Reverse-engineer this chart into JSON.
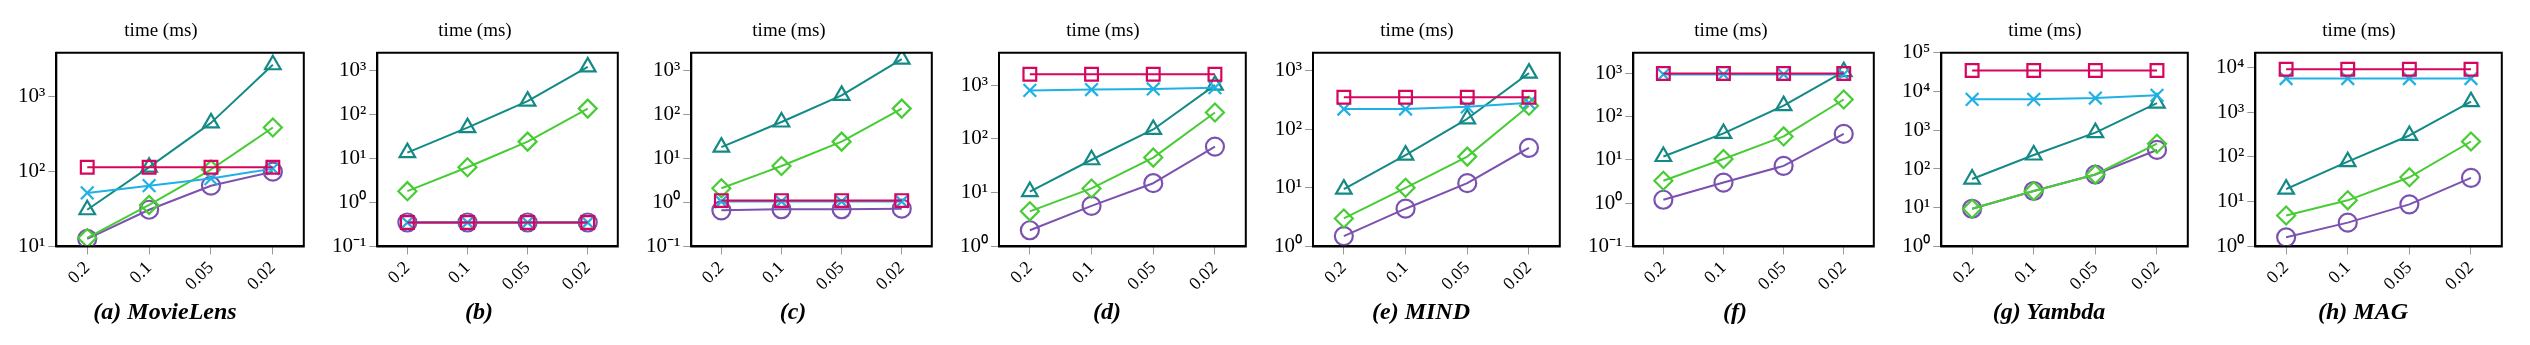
{
  "chart_data": [
    {
      "type": "line",
      "title": "(a) MovieLens",
      "ylabel": "time (ms)",
      "categories": [
        "0.2",
        "0.1",
        "0.05",
        "0.02"
      ],
      "log": "y",
      "ylim": [
        10,
        3900
      ],
      "yticks": [
        {
          "value": 10,
          "label": "10¹"
        },
        {
          "value": 100,
          "label": "10²"
        },
        {
          "value": 1000,
          "label": "10³"
        }
      ],
      "series": [
        {
          "color": "#d6065e",
          "marker": "square",
          "values": [
            115,
            115,
            115,
            115
          ]
        },
        {
          "color": "#1fb1e6",
          "marker": "cross",
          "values": [
            52,
            65,
            81,
            110
          ]
        },
        {
          "color": "#148a86",
          "marker": "triangle",
          "values": [
            31,
            115,
            450,
            2700
          ]
        },
        {
          "color": "#48cc35",
          "marker": "diamond",
          "values": [
            13,
            36,
            107,
            390
          ]
        },
        {
          "color": "#7b52b0",
          "marker": "circle",
          "values": [
            12.6,
            31,
            65,
            100
          ]
        }
      ]
    },
    {
      "type": "line",
      "title": "(b)",
      "ylabel": "time (ms)",
      "categories": [
        "0.2",
        "0.1",
        "0.05",
        "0.02"
      ],
      "log": "y",
      "ylim": [
        0.1,
        2500
      ],
      "yticks": [
        {
          "value": 0.1,
          "label": "10⁻¹"
        },
        {
          "value": 1,
          "label": "10⁰"
        },
        {
          "value": 10,
          "label": "10¹"
        },
        {
          "value": 100,
          "label": "10²"
        },
        {
          "value": 1000,
          "label": "10³"
        }
      ],
      "series": [
        {
          "color": "#d6065e",
          "marker": "square",
          "values": [
            0.35,
            0.35,
            0.35,
            0.35
          ]
        },
        {
          "color": "#1fb1e6",
          "marker": "cross",
          "values": [
            0.35,
            0.35,
            0.35,
            0.35
          ]
        },
        {
          "color": "#148a86",
          "marker": "triangle",
          "values": [
            13.5,
            50,
            200,
            1200
          ]
        },
        {
          "color": "#48cc35",
          "marker": "diamond",
          "values": [
            1.8,
            6.3,
            24,
            135
          ]
        },
        {
          "color": "#7b52b0",
          "marker": "circle",
          "values": [
            0.35,
            0.35,
            0.35,
            0.35
          ]
        }
      ]
    },
    {
      "type": "line",
      "title": "(c)",
      "ylabel": "time (ms)",
      "categories": [
        "0.2",
        "0.1",
        "0.05",
        "0.02"
      ],
      "log": "y",
      "ylim": [
        0.1,
        2500
      ],
      "yticks": [
        {
          "value": 0.1,
          "label": "10⁻¹"
        },
        {
          "value": 1,
          "label": "10⁰"
        },
        {
          "value": 10,
          "label": "10¹"
        },
        {
          "value": 100,
          "label": "10²"
        },
        {
          "value": 1000,
          "label": "10³"
        }
      ],
      "series": [
        {
          "color": "#d6065e",
          "marker": "square",
          "values": [
            1.1,
            1.1,
            1.1,
            1.1
          ]
        },
        {
          "color": "#1fb1e6",
          "marker": "cross",
          "values": [
            1.05,
            1.05,
            1.05,
            1.05
          ]
        },
        {
          "color": "#148a86",
          "marker": "triangle",
          "values": [
            18,
            67,
            270,
            1800
          ]
        },
        {
          "color": "#48cc35",
          "marker": "diamond",
          "values": [
            2.1,
            6.7,
            24,
            135
          ]
        },
        {
          "color": "#7b52b0",
          "marker": "circle",
          "values": [
            0.66,
            0.7,
            0.7,
            0.72
          ]
        }
      ]
    },
    {
      "type": "line",
      "title": "(d)",
      "ylabel": "time (ms)",
      "categories": [
        "0.2",
        "0.1",
        "0.05",
        "0.02"
      ],
      "log": "y",
      "ylim": [
        1,
        4000
      ],
      "yticks": [
        {
          "value": 1,
          "label": "10⁰"
        },
        {
          "value": 10,
          "label": "10¹"
        },
        {
          "value": 100,
          "label": "10²"
        },
        {
          "value": 1000,
          "label": "10³"
        }
      ],
      "series": [
        {
          "color": "#d6065e",
          "marker": "square",
          "values": [
            1600,
            1600,
            1600,
            1600
          ]
        },
        {
          "color": "#1fb1e6",
          "marker": "cross",
          "values": [
            800,
            830,
            850,
            900
          ]
        },
        {
          "color": "#148a86",
          "marker": "triangle",
          "values": [
            10.5,
            41,
            150,
            1000
          ]
        },
        {
          "color": "#48cc35",
          "marker": "diamond",
          "values": [
            4.5,
            12,
            45,
            310
          ]
        },
        {
          "color": "#7b52b0",
          "marker": "circle",
          "values": [
            2,
            5.7,
            15,
            72
          ]
        }
      ]
    },
    {
      "type": "line",
      "title": "(e) MIND",
      "ylabel": "time (ms)",
      "categories": [
        "0.2",
        "0.1",
        "0.05",
        "0.02"
      ],
      "log": "y",
      "ylim": [
        1,
        2000
      ],
      "yticks": [
        {
          "value": 1,
          "label": "10⁰"
        },
        {
          "value": 10,
          "label": "10¹"
        },
        {
          "value": 100,
          "label": "10²"
        },
        {
          "value": 1000,
          "label": "10³"
        }
      ],
      "series": [
        {
          "color": "#d6065e",
          "marker": "square",
          "values": [
            350,
            350,
            350,
            350
          ]
        },
        {
          "color": "#1fb1e6",
          "marker": "cross",
          "values": [
            220,
            220,
            240,
            280
          ]
        },
        {
          "color": "#148a86",
          "marker": "triangle",
          "values": [
            9.5,
            36,
            150,
            900
          ]
        },
        {
          "color": "#48cc35",
          "marker": "diamond",
          "values": [
            3,
            10,
            34,
            250
          ]
        },
        {
          "color": "#7b52b0",
          "marker": "circle",
          "values": [
            1.5,
            4.4,
            12,
            48
          ]
        }
      ]
    },
    {
      "type": "line",
      "title": "(f)",
      "ylabel": "time (ms)",
      "categories": [
        "0.2",
        "0.1",
        "0.05",
        "0.02"
      ],
      "log": "y",
      "ylim": [
        0.1,
        3000
      ],
      "yticks": [
        {
          "value": 0.1,
          "label": "10⁻¹"
        },
        {
          "value": 1,
          "label": "10⁰"
        },
        {
          "value": 10,
          "label": "10¹"
        },
        {
          "value": 100,
          "label": "10²"
        },
        {
          "value": 1000,
          "label": "10³"
        }
      ],
      "series": [
        {
          "color": "#d6065e",
          "marker": "square",
          "values": [
            1000,
            1000,
            1000,
            1000
          ]
        },
        {
          "color": "#1fb1e6",
          "marker": "cross",
          "values": [
            950,
            950,
            950,
            950
          ]
        },
        {
          "color": "#148a86",
          "marker": "triangle",
          "values": [
            12,
            41,
            180,
            1100
          ]
        },
        {
          "color": "#48cc35",
          "marker": "diamond",
          "values": [
            3.3,
            10.5,
            35,
            250
          ]
        },
        {
          "color": "#7b52b0",
          "marker": "circle",
          "values": [
            1.2,
            3,
            7.3,
            40
          ]
        }
      ]
    },
    {
      "type": "line",
      "title": "(g) Yambda",
      "ylabel": "time (ms)",
      "categories": [
        "0.2",
        "0.1",
        "0.05",
        "0.02"
      ],
      "log": "y",
      "ylim": [
        1,
        100000
      ],
      "yticks": [
        {
          "value": 1,
          "label": "10⁰"
        },
        {
          "value": 10,
          "label": "10¹"
        },
        {
          "value": 100,
          "label": "10²"
        },
        {
          "value": 1000,
          "label": "10³"
        },
        {
          "value": 10000,
          "label": "10⁴"
        },
        {
          "value": 100000,
          "label": "10⁵"
        }
      ],
      "series": [
        {
          "color": "#d6065e",
          "marker": "square",
          "values": [
            35000,
            35000,
            35000,
            35000
          ]
        },
        {
          "color": "#1fb1e6",
          "marker": "cross",
          "values": [
            6300,
            6300,
            6800,
            8000
          ]
        },
        {
          "color": "#148a86",
          "marker": "triangle",
          "values": [
            55,
            230,
            870,
            5000
          ]
        },
        {
          "color": "#48cc35",
          "marker": "diamond",
          "values": [
            9.4,
            27,
            72,
            450
          ]
        },
        {
          "color": "#7b52b0",
          "marker": "circle",
          "values": [
            9.4,
            27,
            72,
            310
          ]
        }
      ]
    },
    {
      "type": "line",
      "title": "(h) MAG",
      "ylabel": "time (ms)",
      "categories": [
        "0.2",
        "0.1",
        "0.05",
        "0.02"
      ],
      "log": "y",
      "ylim": [
        1,
        21000
      ],
      "yticks": [
        {
          "value": 1,
          "label": "10⁰"
        },
        {
          "value": 10,
          "label": "10¹"
        },
        {
          "value": 100,
          "label": "10²"
        },
        {
          "value": 1000,
          "label": "10³"
        },
        {
          "value": 10000,
          "label": "10⁴"
        }
      ],
      "series": [
        {
          "color": "#d6065e",
          "marker": "square",
          "values": [
            9000,
            9000,
            9000,
            9000
          ]
        },
        {
          "color": "#1fb1e6",
          "marker": "cross",
          "values": [
            5600,
            5600,
            5600,
            5600
          ]
        },
        {
          "color": "#148a86",
          "marker": "triangle",
          "values": [
            19,
            78,
            300,
            1700
          ]
        },
        {
          "color": "#48cc35",
          "marker": "diamond",
          "values": [
            4.9,
            10.7,
            35,
            220
          ]
        },
        {
          "color": "#7b52b0",
          "marker": "circle",
          "values": [
            1.6,
            3.4,
            8.7,
            34
          ]
        }
      ]
    }
  ]
}
